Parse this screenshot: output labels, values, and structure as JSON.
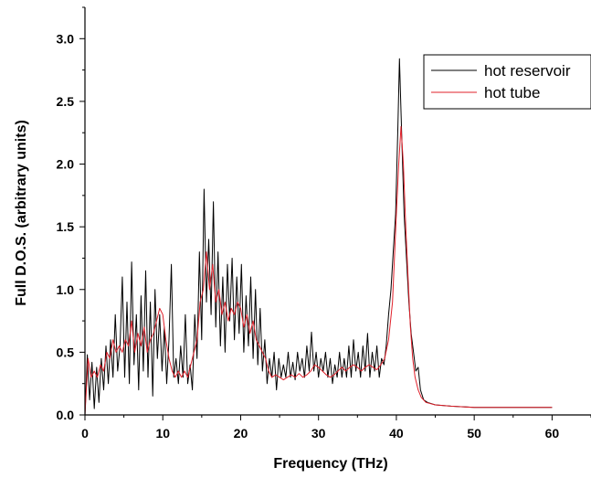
{
  "chart_data": {
    "type": "line",
    "xlabel": "Frequency (THz)",
    "ylabel": "Full D.O.S. (arbitrary units)",
    "xlim": [
      0,
      65
    ],
    "ylim": [
      0,
      3.25
    ],
    "x_ticks": [
      0,
      10,
      20,
      30,
      40,
      50,
      60
    ],
    "x_tick_labels": [
      "0",
      "10",
      "20",
      "30",
      "40",
      "50",
      "60"
    ],
    "y_ticks": [
      0.0,
      0.5,
      1.0,
      1.5,
      2.0,
      2.5,
      3.0
    ],
    "y_tick_labels": [
      "0.0",
      "0.5",
      "1.0",
      "1.5",
      "2.0",
      "2.5",
      "3.0"
    ],
    "grid": false,
    "legend": "top-right",
    "series": [
      {
        "name": "hot reservoir",
        "color": "#000000",
        "points": [
          [
            0,
            0.0
          ],
          [
            0.3,
            0.48
          ],
          [
            0.6,
            0.12
          ],
          [
            0.9,
            0.42
          ],
          [
            1.2,
            0.05
          ],
          [
            1.5,
            0.38
          ],
          [
            1.8,
            0.1
          ],
          [
            2.1,
            0.45
          ],
          [
            2.4,
            0.2
          ],
          [
            2.7,
            0.55
          ],
          [
            3.0,
            0.25
          ],
          [
            3.3,
            0.6
          ],
          [
            3.6,
            0.3
          ],
          [
            3.9,
            0.8
          ],
          [
            4.2,
            0.35
          ],
          [
            4.5,
            0.55
          ],
          [
            4.8,
            1.1
          ],
          [
            5.1,
            0.3
          ],
          [
            5.4,
            0.9
          ],
          [
            5.7,
            0.25
          ],
          [
            6.0,
            1.22
          ],
          [
            6.3,
            0.4
          ],
          [
            6.6,
            0.8
          ],
          [
            6.9,
            0.2
          ],
          [
            7.2,
            0.95
          ],
          [
            7.5,
            0.35
          ],
          [
            7.8,
            1.15
          ],
          [
            8.1,
            0.3
          ],
          [
            8.4,
            0.9
          ],
          [
            8.7,
            0.15
          ],
          [
            9.0,
            1.0
          ],
          [
            9.3,
            0.45
          ],
          [
            9.6,
            0.8
          ],
          [
            9.9,
            0.35
          ],
          [
            10.2,
            0.7
          ],
          [
            10.5,
            0.25
          ],
          [
            10.8,
            0.6
          ],
          [
            11.1,
            1.2
          ],
          [
            11.4,
            0.3
          ],
          [
            11.7,
            0.45
          ],
          [
            12.0,
            0.25
          ],
          [
            12.3,
            0.55
          ],
          [
            12.6,
            0.3
          ],
          [
            12.9,
            0.8
          ],
          [
            13.2,
            0.25
          ],
          [
            13.5,
            0.4
          ],
          [
            13.8,
            0.2
          ],
          [
            14.1,
            0.8
          ],
          [
            14.4,
            0.45
          ],
          [
            14.7,
            1.3
          ],
          [
            15.0,
            0.6
          ],
          [
            15.3,
            1.8
          ],
          [
            15.6,
            0.9
          ],
          [
            15.9,
            1.4
          ],
          [
            16.2,
            0.8
          ],
          [
            16.5,
            1.7
          ],
          [
            16.8,
            0.7
          ],
          [
            17.1,
            1.3
          ],
          [
            17.4,
            0.55
          ],
          [
            17.7,
            1.1
          ],
          [
            18.0,
            0.5
          ],
          [
            18.3,
            1.2
          ],
          [
            18.6,
            0.75
          ],
          [
            18.9,
            1.25
          ],
          [
            19.2,
            0.6
          ],
          [
            19.5,
            1.1
          ],
          [
            19.8,
            0.65
          ],
          [
            20.1,
            1.2
          ],
          [
            20.4,
            0.5
          ],
          [
            20.7,
            0.95
          ],
          [
            21.0,
            0.55
          ],
          [
            21.3,
            1.1
          ],
          [
            21.6,
            0.45
          ],
          [
            21.9,
            1.0
          ],
          [
            22.2,
            0.4
          ],
          [
            22.5,
            0.85
          ],
          [
            22.8,
            0.35
          ],
          [
            23.1,
            0.6
          ],
          [
            23.4,
            0.25
          ],
          [
            23.7,
            0.45
          ],
          [
            24.0,
            0.3
          ],
          [
            24.3,
            0.5
          ],
          [
            24.6,
            0.2
          ],
          [
            24.9,
            0.45
          ],
          [
            25.2,
            0.3
          ],
          [
            25.5,
            0.4
          ],
          [
            25.8,
            0.3
          ],
          [
            26.1,
            0.5
          ],
          [
            26.4,
            0.3
          ],
          [
            26.7,
            0.42
          ],
          [
            27.0,
            0.28
          ],
          [
            27.3,
            0.5
          ],
          [
            27.6,
            0.35
          ],
          [
            27.9,
            0.45
          ],
          [
            28.2,
            0.3
          ],
          [
            28.5,
            0.55
          ],
          [
            28.8,
            0.35
          ],
          [
            29.1,
            0.66
          ],
          [
            29.4,
            0.35
          ],
          [
            29.7,
            0.5
          ],
          [
            30.0,
            0.3
          ],
          [
            30.3,
            0.45
          ],
          [
            30.6,
            0.35
          ],
          [
            30.9,
            0.5
          ],
          [
            31.2,
            0.3
          ],
          [
            31.5,
            0.45
          ],
          [
            31.8,
            0.25
          ],
          [
            32.1,
            0.4
          ],
          [
            32.4,
            0.3
          ],
          [
            32.7,
            0.5
          ],
          [
            33.0,
            0.3
          ],
          [
            33.3,
            0.45
          ],
          [
            33.6,
            0.3
          ],
          [
            33.9,
            0.55
          ],
          [
            34.2,
            0.3
          ],
          [
            34.5,
            0.6
          ],
          [
            34.8,
            0.35
          ],
          [
            35.1,
            0.5
          ],
          [
            35.4,
            0.3
          ],
          [
            35.7,
            0.55
          ],
          [
            36.0,
            0.35
          ],
          [
            36.3,
            0.65
          ],
          [
            36.6,
            0.3
          ],
          [
            36.9,
            0.5
          ],
          [
            37.2,
            0.35
          ],
          [
            37.5,
            0.55
          ],
          [
            37.8,
            0.3
          ],
          [
            38.1,
            0.45
          ],
          [
            38.4,
            0.4
          ],
          [
            38.7,
            0.55
          ],
          [
            39.0,
            0.8
          ],
          [
            39.3,
            1.0
          ],
          [
            39.6,
            1.3
          ],
          [
            39.9,
            1.6
          ],
          [
            40.2,
            2.3
          ],
          [
            40.4,
            2.84
          ],
          [
            40.7,
            2.2
          ],
          [
            41.0,
            1.6
          ],
          [
            41.3,
            1.25
          ],
          [
            41.6,
            0.9
          ],
          [
            41.9,
            0.65
          ],
          [
            42.2,
            0.5
          ],
          [
            42.5,
            0.35
          ],
          [
            42.8,
            0.38
          ],
          [
            43.1,
            0.2
          ],
          [
            43.5,
            0.12
          ],
          [
            44.0,
            0.1
          ],
          [
            45,
            0.08
          ],
          [
            47,
            0.07
          ],
          [
            50,
            0.06
          ],
          [
            55,
            0.06
          ],
          [
            60,
            0.06
          ]
        ]
      },
      {
        "name": "hot tube",
        "color": "#e0202a",
        "points": [
          [
            0,
            0.0
          ],
          [
            0.4,
            0.45
          ],
          [
            0.8,
            0.3
          ],
          [
            1.2,
            0.35
          ],
          [
            1.6,
            0.3
          ],
          [
            2.0,
            0.4
          ],
          [
            2.4,
            0.35
          ],
          [
            2.8,
            0.5
          ],
          [
            3.2,
            0.45
          ],
          [
            3.6,
            0.6
          ],
          [
            4.0,
            0.5
          ],
          [
            4.4,
            0.55
          ],
          [
            4.8,
            0.5
          ],
          [
            5.2,
            0.6
          ],
          [
            5.6,
            0.55
          ],
          [
            6.0,
            0.75
          ],
          [
            6.4,
            0.5
          ],
          [
            6.8,
            0.65
          ],
          [
            7.2,
            0.55
          ],
          [
            7.6,
            0.7
          ],
          [
            8.0,
            0.5
          ],
          [
            8.4,
            0.6
          ],
          [
            8.8,
            0.65
          ],
          [
            9.2,
            0.75
          ],
          [
            9.6,
            0.85
          ],
          [
            10.0,
            0.8
          ],
          [
            10.4,
            0.6
          ],
          [
            10.8,
            0.45
          ],
          [
            11.2,
            0.35
          ],
          [
            11.6,
            0.3
          ],
          [
            12.0,
            0.35
          ],
          [
            12.4,
            0.3
          ],
          [
            12.8,
            0.35
          ],
          [
            13.2,
            0.3
          ],
          [
            13.6,
            0.4
          ],
          [
            14.0,
            0.5
          ],
          [
            14.4,
            0.6
          ],
          [
            14.8,
            0.9
          ],
          [
            15.2,
            1.0
          ],
          [
            15.6,
            1.3
          ],
          [
            16.0,
            1.0
          ],
          [
            16.4,
            1.2
          ],
          [
            16.8,
            0.9
          ],
          [
            17.2,
            1.0
          ],
          [
            17.6,
            0.8
          ],
          [
            18.0,
            0.9
          ],
          [
            18.4,
            0.75
          ],
          [
            18.8,
            0.85
          ],
          [
            19.2,
            0.8
          ],
          [
            19.6,
            0.9
          ],
          [
            20.0,
            0.85
          ],
          [
            20.4,
            0.7
          ],
          [
            20.8,
            0.8
          ],
          [
            21.2,
            0.65
          ],
          [
            21.6,
            0.75
          ],
          [
            22.0,
            0.6
          ],
          [
            22.4,
            0.55
          ],
          [
            22.8,
            0.5
          ],
          [
            23.2,
            0.45
          ],
          [
            23.6,
            0.35
          ],
          [
            24.0,
            0.3
          ],
          [
            24.5,
            0.32
          ],
          [
            25.0,
            0.3
          ],
          [
            25.5,
            0.28
          ],
          [
            26.0,
            0.3
          ],
          [
            26.5,
            0.32
          ],
          [
            27.0,
            0.3
          ],
          [
            27.5,
            0.33
          ],
          [
            28.0,
            0.3
          ],
          [
            28.5,
            0.32
          ],
          [
            29.0,
            0.35
          ],
          [
            29.5,
            0.4
          ],
          [
            30.0,
            0.38
          ],
          [
            30.5,
            0.35
          ],
          [
            31.0,
            0.32
          ],
          [
            31.5,
            0.3
          ],
          [
            32.0,
            0.32
          ],
          [
            32.5,
            0.35
          ],
          [
            33.0,
            0.38
          ],
          [
            33.5,
            0.35
          ],
          [
            34.0,
            0.38
          ],
          [
            34.5,
            0.4
          ],
          [
            35.0,
            0.38
          ],
          [
            35.5,
            0.35
          ],
          [
            36.0,
            0.38
          ],
          [
            36.5,
            0.4
          ],
          [
            37.0,
            0.38
          ],
          [
            37.5,
            0.36
          ],
          [
            38.0,
            0.4
          ],
          [
            38.5,
            0.45
          ],
          [
            39.0,
            0.6
          ],
          [
            39.5,
            0.9
          ],
          [
            40.0,
            1.6
          ],
          [
            40.3,
            2.0
          ],
          [
            40.6,
            2.3
          ],
          [
            40.9,
            2.0
          ],
          [
            41.2,
            1.5
          ],
          [
            41.5,
            1.1
          ],
          [
            41.8,
            0.7
          ],
          [
            42.1,
            0.45
          ],
          [
            42.4,
            0.3
          ],
          [
            42.8,
            0.2
          ],
          [
            43.2,
            0.14
          ],
          [
            43.8,
            0.1
          ],
          [
            45,
            0.08
          ],
          [
            47,
            0.07
          ],
          [
            50,
            0.06
          ],
          [
            55,
            0.06
          ],
          [
            60,
            0.06
          ]
        ]
      }
    ]
  }
}
